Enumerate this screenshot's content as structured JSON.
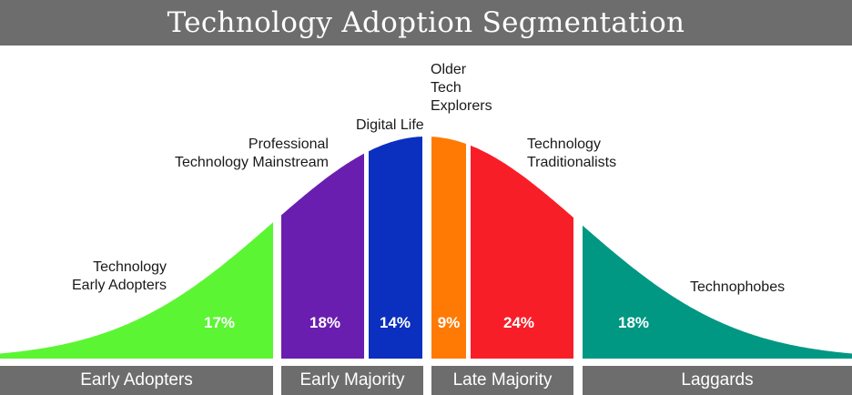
{
  "title": "Technology Adoption Segmentation",
  "segments": [
    {
      "label": "Technology\nEarly Adopters",
      "percent": "17%",
      "color": "#5cf534"
    },
    {
      "label": "Professional\nTechnology Mainstream",
      "percent": "18%",
      "color": "#6a1eb0"
    },
    {
      "label": "Digital Life",
      "percent": "14%",
      "color": "#0b2fbe"
    },
    {
      "label": "Older\nTech\nExplorers",
      "percent": "9%",
      "color": "#ff7a05"
    },
    {
      "label": "Technology\nTraditionalists",
      "percent": "24%",
      "color": "#f81e28"
    },
    {
      "label": "Technophobes",
      "percent": "18%",
      "color": "#009883"
    }
  ],
  "categories": [
    "Early Adopters",
    "Early Majority",
    "Late Majority",
    "Laggards"
  ]
}
